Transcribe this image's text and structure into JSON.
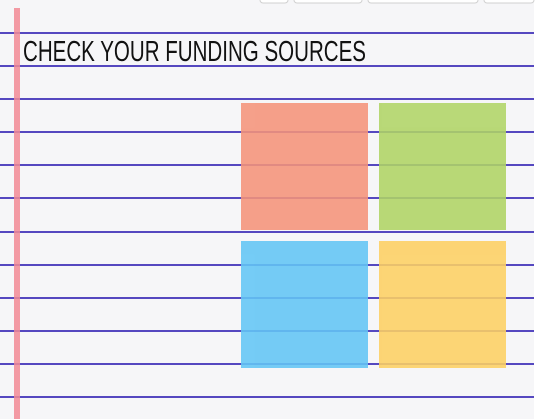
{
  "header": {
    "title": "CHECK YOUR FUNDING SOURCES"
  }
}
